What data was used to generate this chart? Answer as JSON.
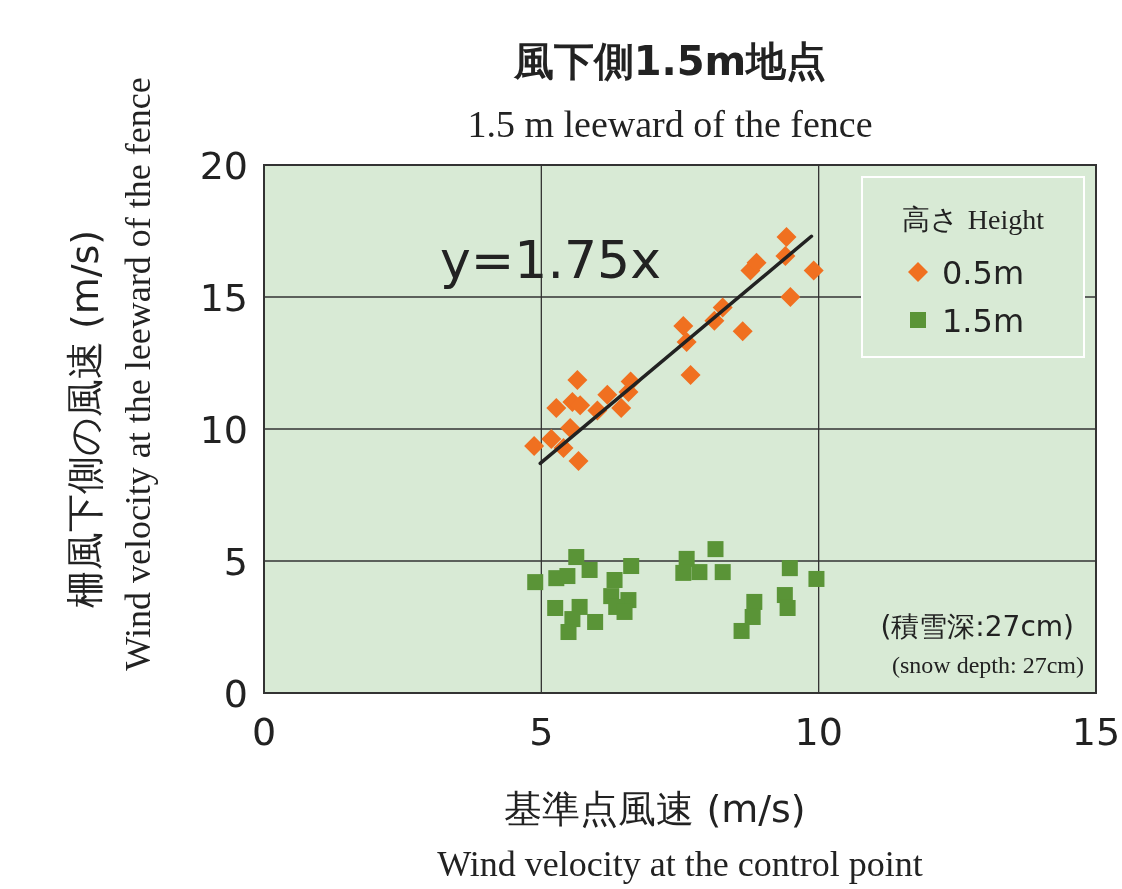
{
  "chart_data": {
    "type": "scatter",
    "title": "風下側1.5m地点",
    "subtitle": "1.5 m leeward of the fence",
    "xlabel": "基準点風速 (m/s)\nWind velocity at the control point",
    "ylabel": "柵風下側の風速 (m/s)\nWind velocity at the leeward of the fence",
    "legend_title": "高さ Height",
    "series": [
      {
        "name": "0.5m",
        "color": "#f07020",
        "marker": "diamond",
        "x": [
          4.87,
          5.18,
          5.27,
          5.4,
          5.52,
          5.56,
          5.65,
          5.67,
          5.7,
          6.01,
          6.19,
          6.44,
          6.57,
          6.61,
          7.56,
          7.62,
          7.69,
          8.12,
          8.27,
          8.63,
          8.77,
          8.88,
          9.4,
          9.42,
          9.49,
          9.91
        ],
        "values": [
          9.36,
          9.62,
          10.8,
          9.28,
          10.04,
          11.02,
          11.86,
          8.79,
          10.9,
          10.7,
          11.3,
          10.8,
          11.4,
          11.8,
          13.9,
          13.3,
          12.05,
          14.1,
          14.6,
          13.7,
          16.0,
          16.3,
          16.55,
          17.27,
          15.0,
          16.0
        ]
      },
      {
        "name": "1.5m",
        "color": "#5a9437",
        "marker": "square",
        "x": [
          4.89,
          5.27,
          5.47,
          5.63,
          5.87,
          5.25,
          5.69,
          5.56,
          5.49,
          5.97,
          6.32,
          6.62,
          6.26,
          6.57,
          6.35,
          6.5,
          7.62,
          7.56,
          7.85,
          8.14,
          8.27,
          8.84,
          8.81,
          8.61,
          9.48,
          9.39,
          9.44,
          9.96
        ],
        "values": [
          4.2,
          4.35,
          4.43,
          5.15,
          4.66,
          3.22,
          3.26,
          2.8,
          2.31,
          2.69,
          4.28,
          4.81,
          3.67,
          3.52,
          3.26,
          3.07,
          5.08,
          4.55,
          4.58,
          5.45,
          4.58,
          3.45,
          2.88,
          2.35,
          4.73,
          3.71,
          3.22,
          4.32
        ]
      },
      {
        "type": "line",
        "color": "#222222",
        "x": [
          4.98,
          9.87
        ],
        "values": [
          8.7,
          17.3
        ]
      }
    ],
    "annotations": [
      "y=1.75x",
      "(積雪深:27cm)",
      "(snow depth: 27cm)"
    ],
    "xlim": [
      0,
      15
    ],
    "xticks": [
      0,
      5,
      10,
      15
    ],
    "ylim": [
      0,
      20
    ],
    "yticks": [
      0,
      5,
      10,
      15,
      20
    ],
    "grid": true,
    "legend": "top right"
  }
}
